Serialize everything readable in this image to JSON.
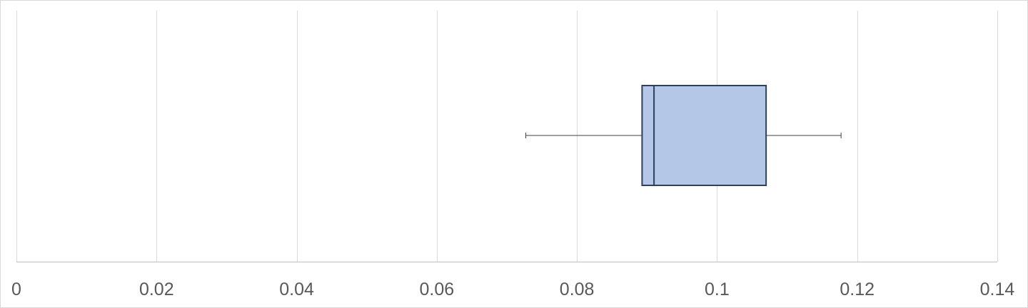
{
  "chart_data": {
    "type": "box",
    "orientation": "horizontal",
    "xlim": [
      0,
      0.14
    ],
    "x_ticks": [
      0,
      0.02,
      0.04,
      0.06,
      0.08,
      0.1,
      0.12,
      0.14
    ],
    "x_tick_labels": [
      "0",
      "0.02",
      "0.04",
      "0.06",
      "0.08",
      "0.1",
      "0.12",
      "0.14"
    ],
    "grid": true,
    "legend": "none",
    "series": [
      {
        "min": 0.0727,
        "q1": 0.0893,
        "median": 0.091,
        "q3": 0.107,
        "max": 0.1177
      }
    ],
    "colors": {
      "box_fill": "#b4c7e7",
      "box_stroke": "#2f3f5f",
      "whisker": "#404040",
      "grid": "#d9d9d9",
      "tick_text": "#595959"
    }
  }
}
